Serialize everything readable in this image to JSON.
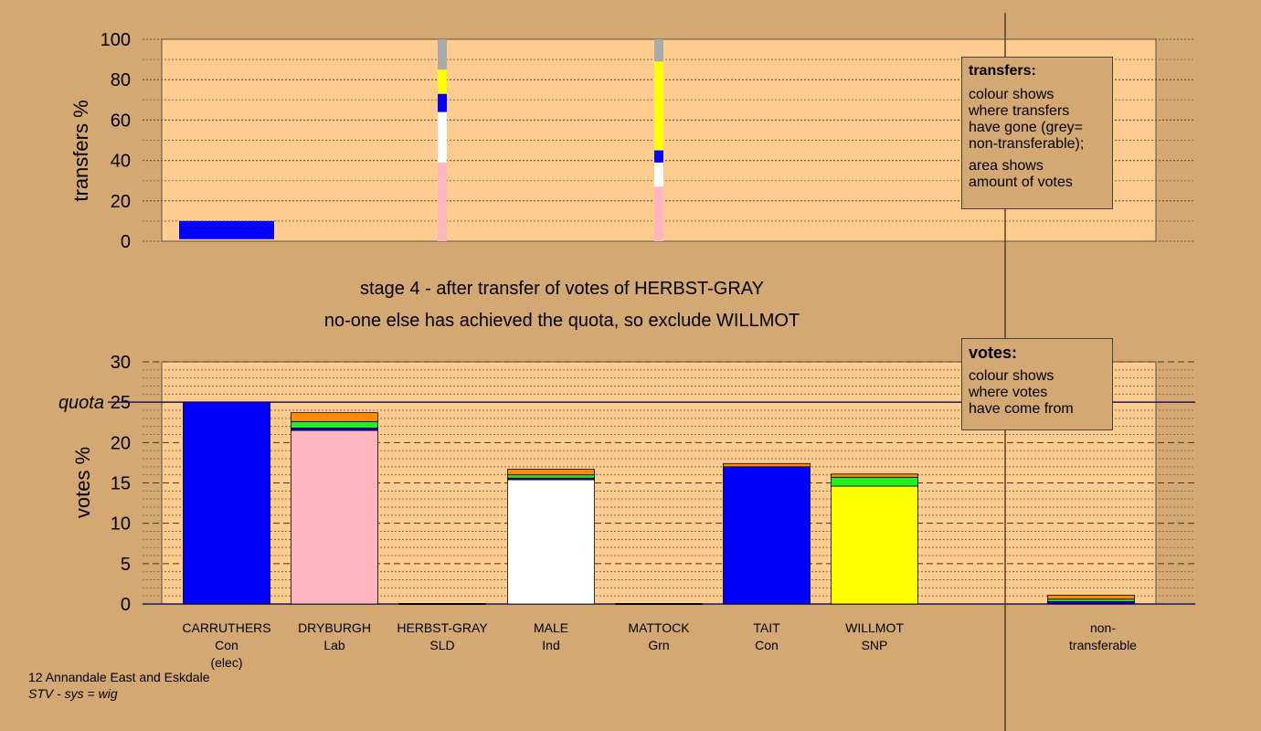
{
  "stage_title": "stage 4 - after transfer of votes of HERBST-GRAY",
  "stage_subtitle": "no-one else has achieved the quota, so exclude WILLMOT",
  "transfers_legend": {
    "title": "transfers:",
    "line1": "colour shows",
    "line2": "where transfers",
    "line3": "have gone (grey=",
    "line4": "non-transferable);",
    "line5": "area shows",
    "line6": "amount of votes"
  },
  "votes_legend": {
    "title": "votes:",
    "line1": "colour shows",
    "line2": "where votes",
    "line3": "have come from"
  },
  "footer": {
    "ward": "12 Annandale East and Eskdale",
    "system": "STV - sys = wig"
  },
  "candidates": [
    {
      "name": "CARRUTHERS",
      "party": "Con",
      "note": "(elec)"
    },
    {
      "name": "DRYBURGH",
      "party": "Lab",
      "note": ""
    },
    {
      "name": "HERBST-GRAY",
      "party": "SLD",
      "note": ""
    },
    {
      "name": "MALE",
      "party": "Ind",
      "note": ""
    },
    {
      "name": "MATTOCK",
      "party": "Grn",
      "note": ""
    },
    {
      "name": "TAIT",
      "party": "Con",
      "note": ""
    },
    {
      "name": "WILLMOT",
      "party": "SNP",
      "note": ""
    }
  ],
  "nontransferable_label": {
    "line1": "non-",
    "line2": "transferable"
  },
  "colors": {
    "background": "#d4a873",
    "plot": "#ffcc8f",
    "Con": "#0000ff",
    "Lab": "#ffb6c1",
    "SLD": "#ff8c00",
    "Ind": "#ffffff",
    "Grn": "#22ee22",
    "SNP": "#ffff00",
    "nontransferable": "#aaaaaa"
  },
  "chart_data": [
    {
      "type": "bar",
      "ylabel": "transfers %",
      "ylim": [
        0,
        100
      ],
      "yticks": [
        0,
        20,
        40,
        60,
        80,
        100
      ],
      "categories": [
        "CARRUTHERS",
        "DRYBURGH",
        "HERBST-GRAY",
        "MALE",
        "MATTOCK",
        "TAIT",
        "WILLMOT"
      ],
      "transfer_columns": [
        {
          "category": "CARRUTHERS",
          "kind": "surplus",
          "segments": [
            {
              "to": "TAIT",
              "color": "Con",
              "from": 1,
              "to_pct": 10
            }
          ]
        },
        {
          "category": "HERBST-GRAY",
          "kind": "elimination",
          "segments": [
            {
              "to": "DRYBURGH",
              "color": "Lab",
              "from": 0,
              "to_pct": 39
            },
            {
              "to": "MALE",
              "color": "Ind",
              "from": 39,
              "to_pct": 64
            },
            {
              "to": "TAIT",
              "color": "Con",
              "from": 64,
              "to_pct": 73
            },
            {
              "to": "WILLMOT",
              "color": "SNP",
              "from": 73,
              "to_pct": 85
            },
            {
              "to": "non-transferable",
              "color": "nontransferable",
              "from": 85,
              "to_pct": 100
            }
          ]
        },
        {
          "category": "MATTOCK",
          "kind": "elimination",
          "segments": [
            {
              "to": "DRYBURGH",
              "color": "Lab",
              "from": 0,
              "to_pct": 27
            },
            {
              "to": "MALE",
              "color": "Ind",
              "from": 27,
              "to_pct": 39
            },
            {
              "to": "TAIT",
              "color": "Con",
              "from": 39,
              "to_pct": 45
            },
            {
              "to": "WILLMOT",
              "color": "SNP",
              "from": 45,
              "to_pct": 89
            },
            {
              "to": "non-transferable",
              "color": "nontransferable",
              "from": 89,
              "to_pct": 100
            }
          ]
        }
      ]
    },
    {
      "type": "bar",
      "ylabel": "votes %",
      "ylim": [
        0,
        30
      ],
      "yticks": [
        0,
        5,
        10,
        15,
        20,
        25,
        30
      ],
      "quota": 25,
      "quota_label": "quota",
      "categories": [
        "CARRUTHERS",
        "DRYBURGH",
        "HERBST-GRAY",
        "MALE",
        "MATTOCK",
        "TAIT",
        "WILLMOT",
        "non-transferable"
      ],
      "stacks": [
        {
          "category": "CARRUTHERS",
          "segments": [
            {
              "from": "Con",
              "value": 25
            }
          ]
        },
        {
          "category": "DRYBURGH",
          "segments": [
            {
              "from": "Lab",
              "value": 21.5
            },
            {
              "from": "Con",
              "value": 0.3
            },
            {
              "from": "Grn",
              "value": 0.8
            },
            {
              "from": "SLD",
              "value": 1.1
            }
          ]
        },
        {
          "category": "HERBST-GRAY",
          "segments": [
            {
              "from": "SLD",
              "value": 0
            }
          ]
        },
        {
          "category": "MALE",
          "segments": [
            {
              "from": "Ind",
              "value": 15.4
            },
            {
              "from": "Con",
              "value": 0.2
            },
            {
              "from": "Grn",
              "value": 0.4
            },
            {
              "from": "SLD",
              "value": 0.7
            }
          ]
        },
        {
          "category": "MATTOCK",
          "segments": [
            {
              "from": "Grn",
              "value": 0
            }
          ]
        },
        {
          "category": "TAIT",
          "segments": [
            {
              "from": "Con",
              "value": 17.0
            },
            {
              "from": "SLD",
              "value": 0.4
            }
          ]
        },
        {
          "category": "WILLMOT",
          "segments": [
            {
              "from": "SNP",
              "value": 14.6
            },
            {
              "from": "Grn",
              "value": 1.1
            },
            {
              "from": "SLD",
              "value": 0.4
            }
          ]
        },
        {
          "category": "non-transferable",
          "segments": [
            {
              "from": "Con",
              "value": 0.3
            },
            {
              "from": "Grn",
              "value": 0.3
            },
            {
              "from": "SLD",
              "value": 0.5
            }
          ]
        }
      ]
    }
  ]
}
